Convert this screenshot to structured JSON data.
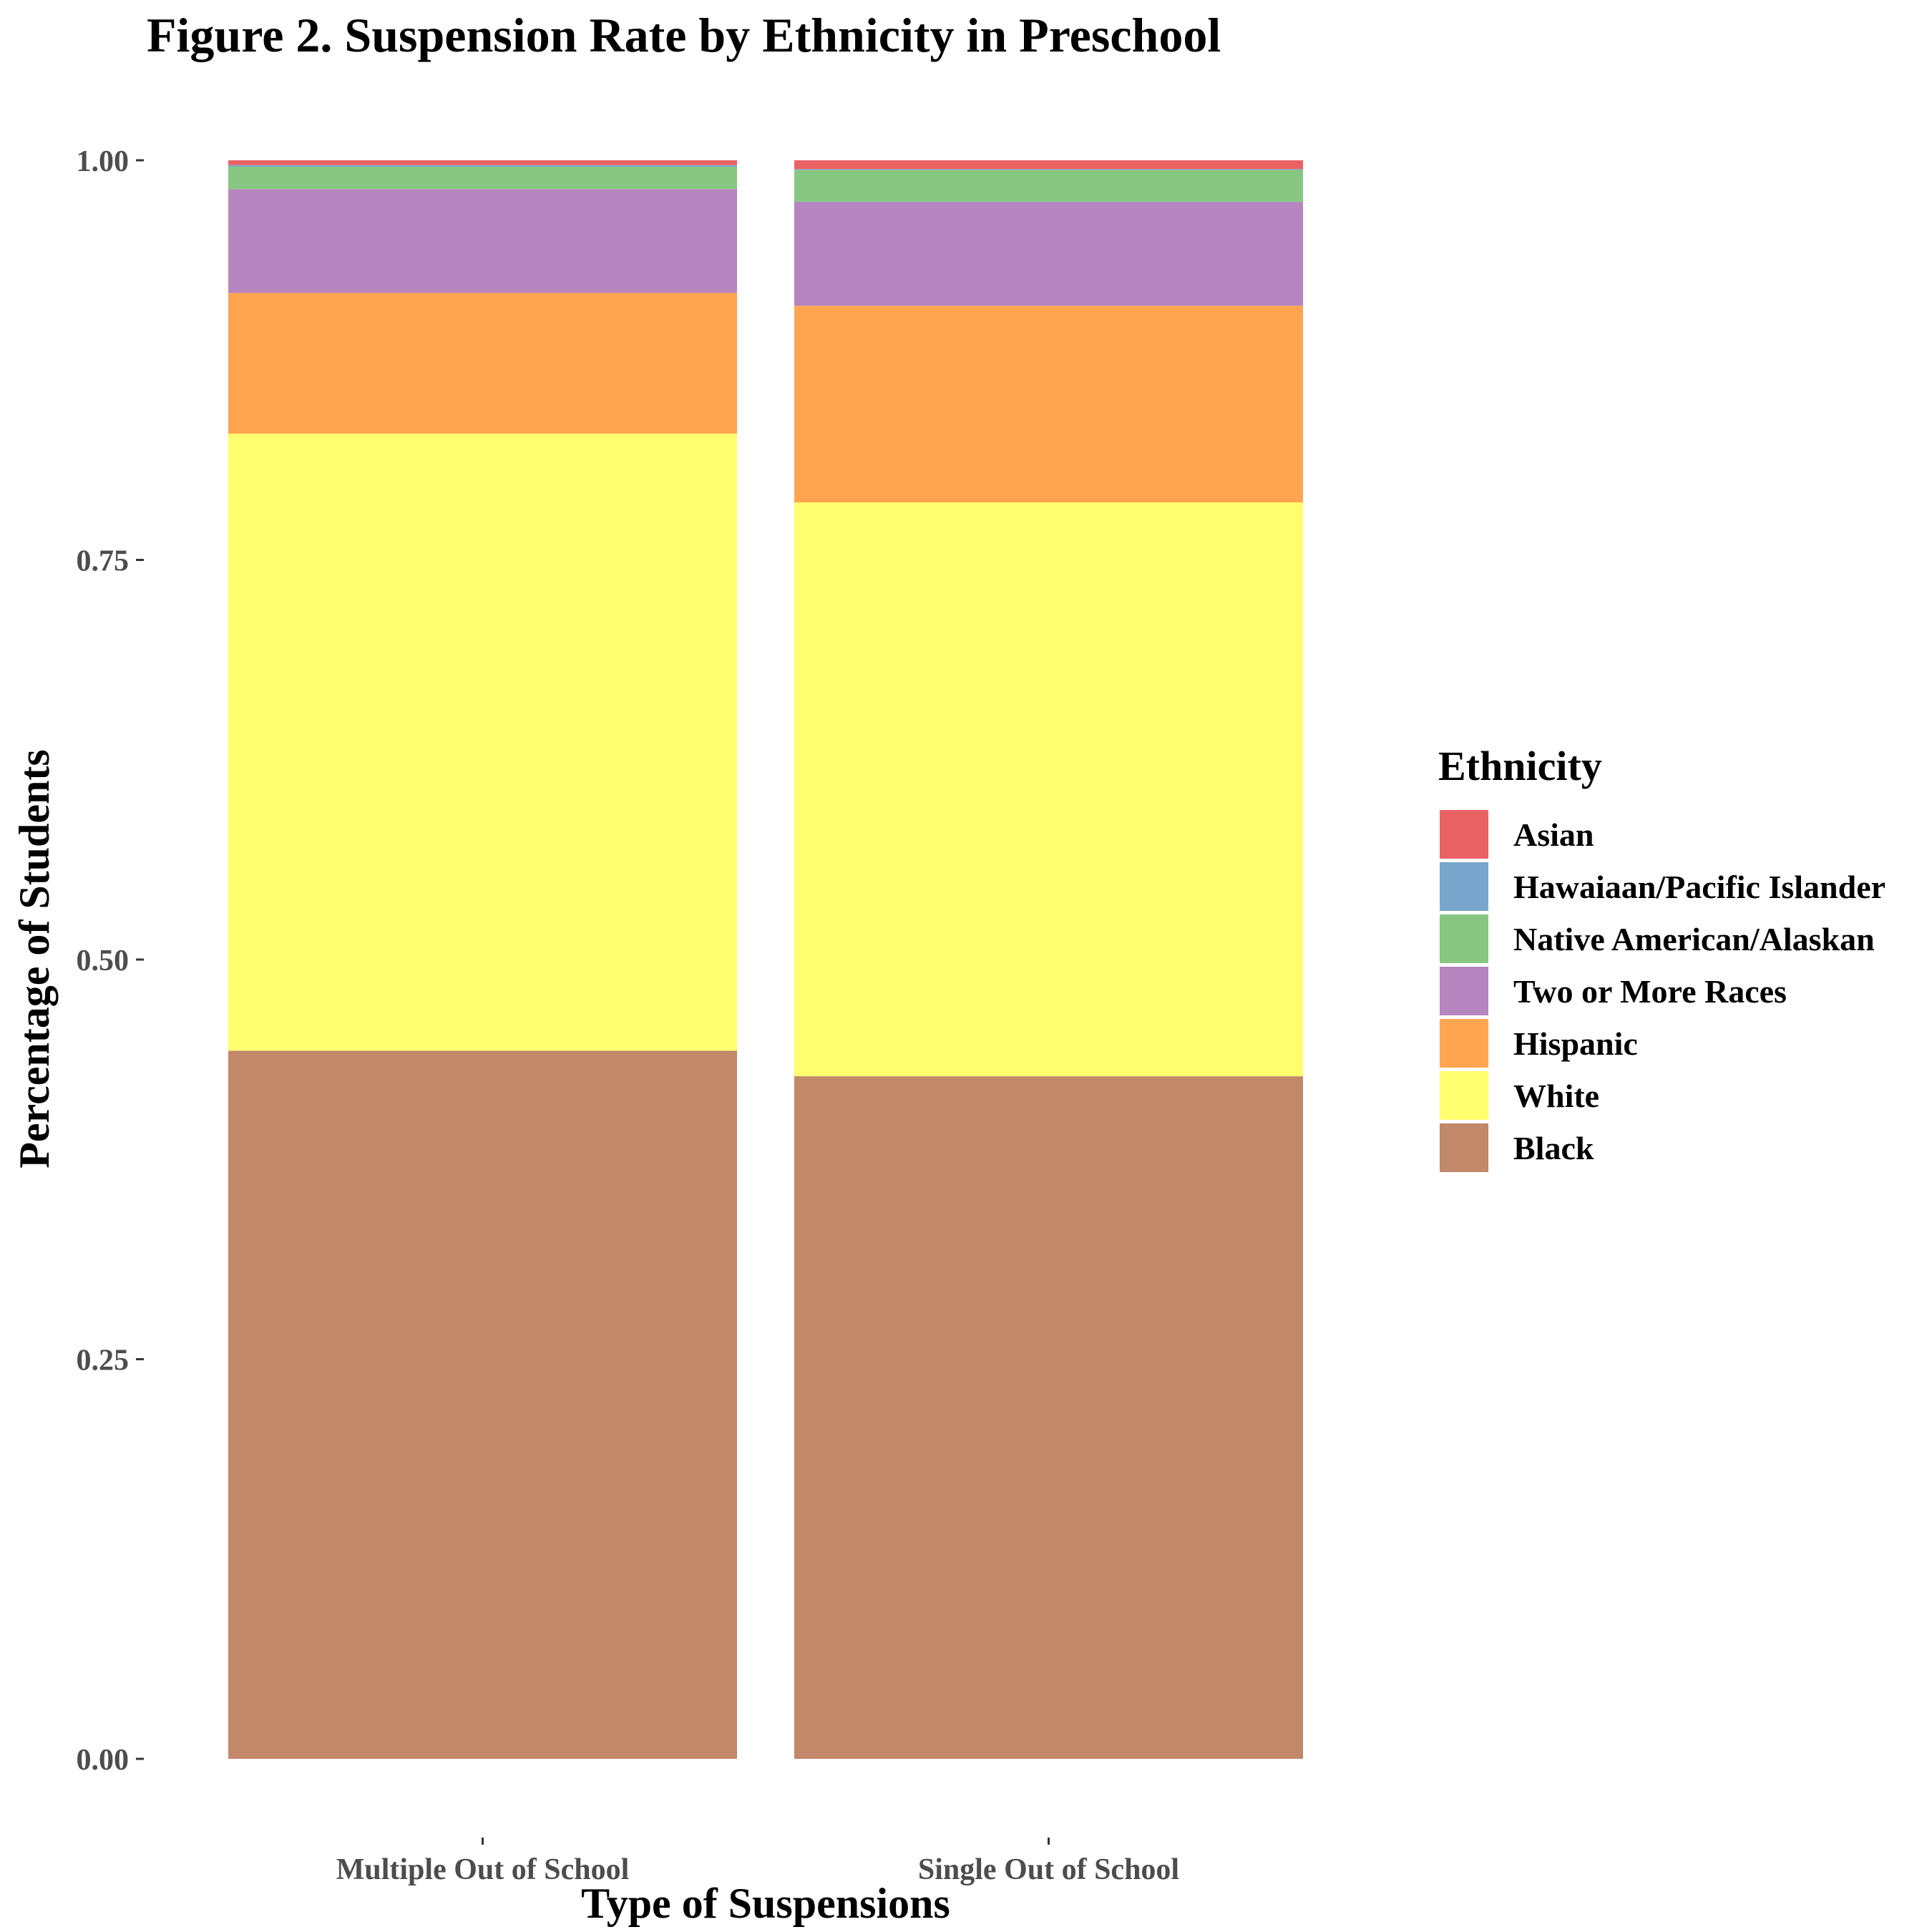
{
  "chart_data": {
    "type": "bar",
    "stacked": true,
    "title": "Figure 2. Suspension Rate by Ethnicity in Preschool",
    "xlabel": "Type of Suspensions",
    "ylabel": "Percentage of Students",
    "ylim": [
      0,
      1
    ],
    "yticks": [
      "0.00",
      "0.25",
      "0.50",
      "0.75",
      "1.00"
    ],
    "grid": false,
    "legend": {
      "title": "Ethnicity",
      "position": "right"
    },
    "categories": [
      "Multiple Out of School",
      "Single Out of School"
    ],
    "series": [
      {
        "name": "Black",
        "color": "#c1886a",
        "values": [
          0.443,
          0.427
        ]
      },
      {
        "name": "White",
        "color": "#fffe6e",
        "values": [
          0.386,
          0.359
        ]
      },
      {
        "name": "Hispanic",
        "color": "#ffa54f",
        "values": [
          0.088,
          0.123
        ]
      },
      {
        "name": "Two or More Races",
        "color": "#b685c0",
        "values": [
          0.065,
          0.065
        ]
      },
      {
        "name": "Native American/Alaskan",
        "color": "#87c782",
        "values": [
          0.014,
          0.02
        ]
      },
      {
        "name": "Hawaiaan/Pacific Islander",
        "color": "#78a6cc",
        "values": [
          0.001,
          0.0005
        ]
      },
      {
        "name": "Asian",
        "color": "#eb6265",
        "values": [
          0.003,
          0.0055
        ]
      }
    ],
    "legend_order": [
      "Asian",
      "Hawaiaan/Pacific Islander",
      "Native American/Alaskan",
      "Two or More Races",
      "Hispanic",
      "White",
      "Black"
    ]
  }
}
